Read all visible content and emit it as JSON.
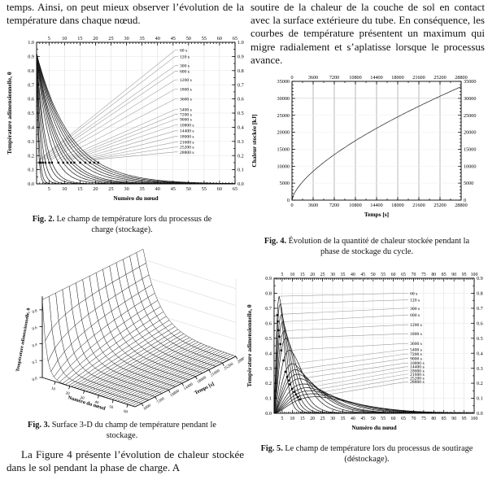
{
  "page": {
    "para_left_top": "temps. Ainsi, on peut mieux observer l’évolution de la température dans chaque nœud.",
    "para_right_top": "soutire de la chaleur de la couche de sol en contact avec la surface extérieure du tube. En conséquence, les courbes de température présentent un maximum qui migre radialement et s’aplatisse lorsque le processus avance.",
    "para_left_bottom": "La Figure 4 présente l’évolution de chaleur stockée dans le sol pendant la phase de charge. A"
  },
  "captions": {
    "fig2": {
      "label": "Fig. 2.",
      "text": " Le champ de température lors du processus de charge (stockage)."
    },
    "fig3": {
      "label": "Fig. 3.",
      "text": " Surface 3-D du champ de température pendant le stockage."
    },
    "fig4": {
      "label": "Fig. 4.",
      "text": " Évolution de la quantité de chaleur stockée pendant la phase de stockage du cycle."
    },
    "fig5": {
      "label": "Fig. 5.",
      "text": " Le champ de température lors du processus de soutirage (déstockage)."
    }
  },
  "chart_data": [
    {
      "id": "fig2",
      "type": "line",
      "xlabel": "Numéro du nœud",
      "ylabel": "Température adimensionnelle, θ",
      "xlim": [
        1,
        65
      ],
      "ylim": [
        0.0,
        1.0
      ],
      "xticks": [
        5,
        10,
        15,
        20,
        25,
        30,
        35,
        40,
        45,
        50,
        55,
        60,
        65
      ],
      "yticks": [
        0.0,
        0.1,
        0.2,
        0.3,
        0.4,
        0.5,
        0.6,
        0.7,
        0.8,
        0.9,
        1.0
      ],
      "grid": true,
      "tick_labels": "all-four-sides",
      "curve_model": "theta = 0.92 * exp(-(node-1)/lambda)",
      "y_start": 0.92,
      "series": [
        {
          "name": "60 s",
          "lambda": 0.5
        },
        {
          "name": "120 s",
          "lambda": 0.71
        },
        {
          "name": "300 s",
          "lambda": 1.12
        },
        {
          "name": "600 s",
          "lambda": 1.58
        },
        {
          "name": "1200 s",
          "lambda": 2.24
        },
        {
          "name": "1800 s",
          "lambda": 2.74
        },
        {
          "name": "3600 s",
          "lambda": 3.88
        },
        {
          "name": "5400 s",
          "lambda": 4.75
        },
        {
          "name": "7200 s",
          "lambda": 5.48
        },
        {
          "name": "9000 s",
          "lambda": 6.13
        },
        {
          "name": "10800 s",
          "lambda": 6.71
        },
        {
          "name": "14400 s",
          "lambda": 7.75
        },
        {
          "name": "18000 s",
          "lambda": 8.66
        },
        {
          "name": "21600 s",
          "lambda": 9.49
        },
        {
          "name": "25200 s",
          "lambda": 10.25
        },
        {
          "name": "28800 s",
          "lambda": 10.96
        }
      ],
      "legend_y": [
        0.945,
        0.9,
        0.835,
        0.795,
        0.735,
        0.67,
        0.6,
        0.525,
        0.49,
        0.455,
        0.415,
        0.375,
        0.335,
        0.295,
        0.26,
        0.225
      ],
      "marker_row_theta": 0.15
    },
    {
      "id": "fig3",
      "type": "surface3d",
      "xlabel": "Numéro du nœud",
      "ylabel": "Temps [s]",
      "zlabel": "Température adimensionnelle, θ",
      "node_ticks": [
        10,
        20,
        30,
        40,
        50,
        60
      ],
      "time_ticks": [
        3600,
        7200,
        10800,
        14400,
        18000,
        21600,
        25200,
        28800
      ],
      "z_ticks": [
        0.0,
        0.2,
        0.4,
        0.6,
        0.8
      ],
      "surface_model": "theta(node,t) = 0.92 * exp(-(node-1)/(0.0646*sqrt(t)))",
      "node_range": [
        1,
        65
      ],
      "time_range": [
        1800,
        28800
      ],
      "time_rows": 16
    },
    {
      "id": "fig4",
      "type": "line",
      "xlabel": "Temps [s]",
      "ylabel": "Chaleur stockée [kJ]",
      "xlim": [
        0,
        28800
      ],
      "ylim": [
        0,
        35000
      ],
      "xticks": [
        0,
        3600,
        7200,
        10800,
        14400,
        18000,
        21600,
        25200,
        28800
      ],
      "yticks": [
        0,
        5000,
        10000,
        15000,
        20000,
        25000,
        30000,
        35000
      ],
      "x": [
        0,
        3600,
        7200,
        10800,
        14400,
        18000,
        21600,
        25200,
        28800
      ],
      "values": [
        0,
        8500,
        13300,
        17400,
        21000,
        24300,
        27400,
        30400,
        33500
      ],
      "power_fit": {
        "a": 38.5,
        "b": 0.659
      },
      "grid": true,
      "tick_labels": "all-four-sides"
    },
    {
      "id": "fig5",
      "type": "line",
      "xlabel": "Numéro du nœud",
      "ylabel": "Température adimensionnelle, θ",
      "xlim": [
        1,
        100
      ],
      "ylim": [
        0.0,
        0.9
      ],
      "xticks": [
        5,
        10,
        15,
        20,
        25,
        30,
        35,
        40,
        45,
        50,
        55,
        60,
        65,
        70,
        75,
        80,
        85,
        90,
        95,
        100
      ],
      "yticks": [
        0.0,
        0.1,
        0.2,
        0.3,
        0.4,
        0.5,
        0.6,
        0.7,
        0.8,
        0.9
      ],
      "grid": true,
      "tick_labels": "all-four-sides",
      "curve_model": "theta = peak * u^1.8 * exp(1.8*(1-u)), u = (node-1)/peak_node",
      "series": [
        {
          "name": "60 s",
          "peak": 0.78,
          "peak_node": 2.5
        },
        {
          "name": "120 s",
          "peak": 0.73,
          "peak_node": 3.0
        },
        {
          "name": "300 s",
          "peak": 0.66,
          "peak_node": 3.6
        },
        {
          "name": "600 s",
          "peak": 0.61,
          "peak_node": 4.2
        },
        {
          "name": "1200 s",
          "peak": 0.55,
          "peak_node": 5.0
        },
        {
          "name": "1800 s",
          "peak": 0.5,
          "peak_node": 5.8
        },
        {
          "name": "3600 s",
          "peak": 0.42,
          "peak_node": 7.5
        },
        {
          "name": "5400 s",
          "peak": 0.33,
          "peak_node": 9.0
        },
        {
          "name": "7200 s",
          "peak": 0.29,
          "peak_node": 10.5
        },
        {
          "name": "9000 s",
          "peak": 0.26,
          "peak_node": 11.5
        },
        {
          "name": "10800 s",
          "peak": 0.23,
          "peak_node": 12.5
        },
        {
          "name": "14400 s",
          "peak": 0.195,
          "peak_node": 14.5
        },
        {
          "name": "18000 s",
          "peak": 0.17,
          "peak_node": 16.0
        },
        {
          "name": "21600 s",
          "peak": 0.15,
          "peak_node": 17.5
        },
        {
          "name": "25200 s",
          "peak": 0.13,
          "peak_node": 19.0
        },
        {
          "name": "28800 s",
          "peak": 0.11,
          "peak_node": 20.5
        }
      ],
      "legend_y": [
        0.8,
        0.755,
        0.7,
        0.655,
        0.59,
        0.53,
        0.465,
        0.425,
        0.395,
        0.365,
        0.335,
        0.31,
        0.285,
        0.26,
        0.235,
        0.21
      ]
    }
  ]
}
